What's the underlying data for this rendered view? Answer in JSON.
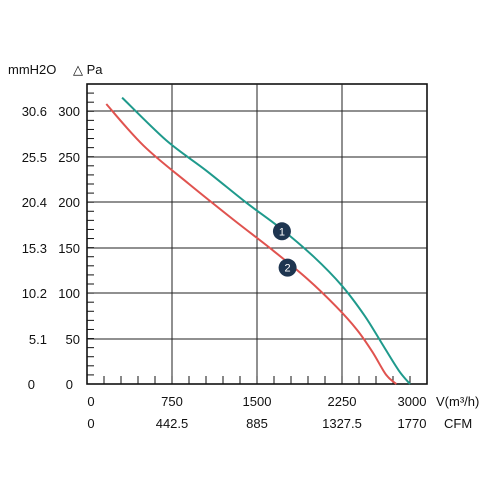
{
  "chart_data": {
    "type": "line",
    "left_axis_1": {
      "unit": "mmH2O",
      "ticks": [
        "30.6",
        "25.5",
        "20.4",
        "15.3",
        "10.2",
        "5.1",
        "0"
      ]
    },
    "left_axis_2": {
      "unit": "△ Pa",
      "ticks": [
        "300",
        "250",
        "200",
        "150",
        "100",
        "50",
        "0"
      ]
    },
    "x_axis_1": {
      "unit": "V(m³/h)",
      "ticks": [
        "0",
        "750",
        "1500",
        "2250",
        "3000"
      ]
    },
    "x_axis_2": {
      "unit": "CFM",
      "ticks": [
        "0",
        "442.5",
        "885",
        "1327.5",
        "1770"
      ]
    },
    "xlim": [
      0,
      3000
    ],
    "ylim": [
      0,
      330
    ],
    "grid": true,
    "series": [
      {
        "name": "1",
        "color": "#1f9a8c",
        "x": [
          310,
          700,
          1050,
          1400,
          1700,
          2000,
          2250,
          2450,
          2600,
          2750,
          2850
        ],
        "y": [
          315,
          268,
          235,
          200,
          172,
          140,
          108,
          75,
          45,
          15,
          0
        ]
      },
      {
        "name": "2",
        "color": "#e0534f",
        "x": [
          170,
          500,
          900,
          1300,
          1650,
          1950,
          2200,
          2380,
          2520,
          2640,
          2730
        ],
        "y": [
          308,
          262,
          220,
          180,
          146,
          115,
          85,
          60,
          35,
          10,
          0
        ]
      }
    ],
    "markers": [
      {
        "label": "1",
        "x": 1720,
        "y": 168,
        "color": "#1e3550"
      },
      {
        "label": "2",
        "x": 1770,
        "y": 128,
        "color": "#1e3550"
      }
    ]
  }
}
